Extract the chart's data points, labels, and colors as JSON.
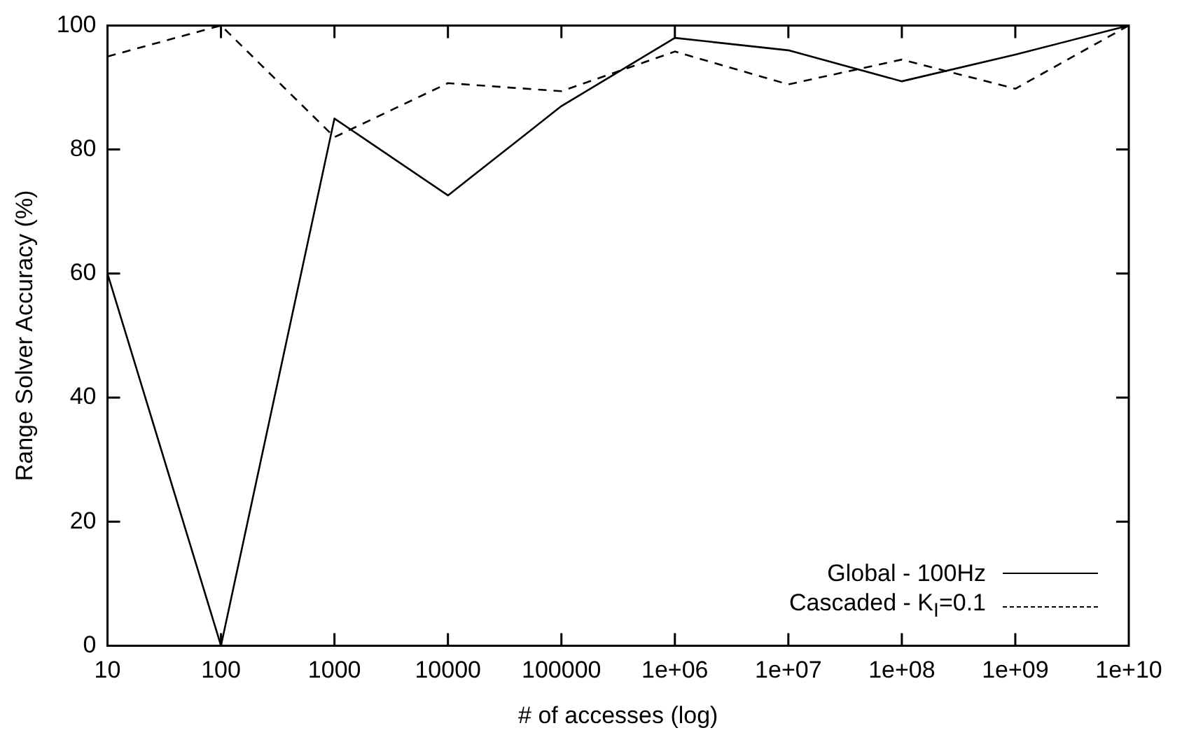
{
  "chart_data": {
    "type": "line",
    "xlabel": "# of accesses (log)",
    "ylabel": "Range Solver Accuracy (%)",
    "x": [
      10,
      100,
      1000,
      10000,
      100000,
      1000000,
      10000000,
      100000000,
      1000000000,
      10000000000
    ],
    "series": [
      {
        "name": "Global - 100Hz",
        "color": "#000000",
        "line_style": "solid",
        "values": [
          60,
          0,
          85,
          72.6,
          87,
          98,
          96,
          91,
          95.3,
          100
        ]
      },
      {
        "name": "Cascaded - K$_{I}$=0.1",
        "color": "#000000",
        "line_style": "dashed",
        "values": [
          95,
          100,
          82,
          90.7,
          89.4,
          95.8,
          90.5,
          94.5,
          89.8,
          100
        ]
      }
    ],
    "log": "x",
    "xlim": [
      10,
      10000000000
    ],
    "ylim": [
      0,
      100
    ],
    "xticks": [
      10,
      100,
      1000,
      10000,
      100000,
      {
        "value": 1000000,
        "label": "1e+06"
      },
      {
        "value": 10000000,
        "label": "1e+07"
      },
      {
        "value": 100000000,
        "label": "1e+08"
      },
      {
        "value": 1000000000,
        "label": "1e+09"
      },
      {
        "value": 10000000000,
        "label": "1e+10"
      }
    ],
    "yticks": [
      0,
      20,
      40,
      60,
      80,
      100
    ],
    "grid": false,
    "legend": "bottom right",
    "marker": "none"
  }
}
